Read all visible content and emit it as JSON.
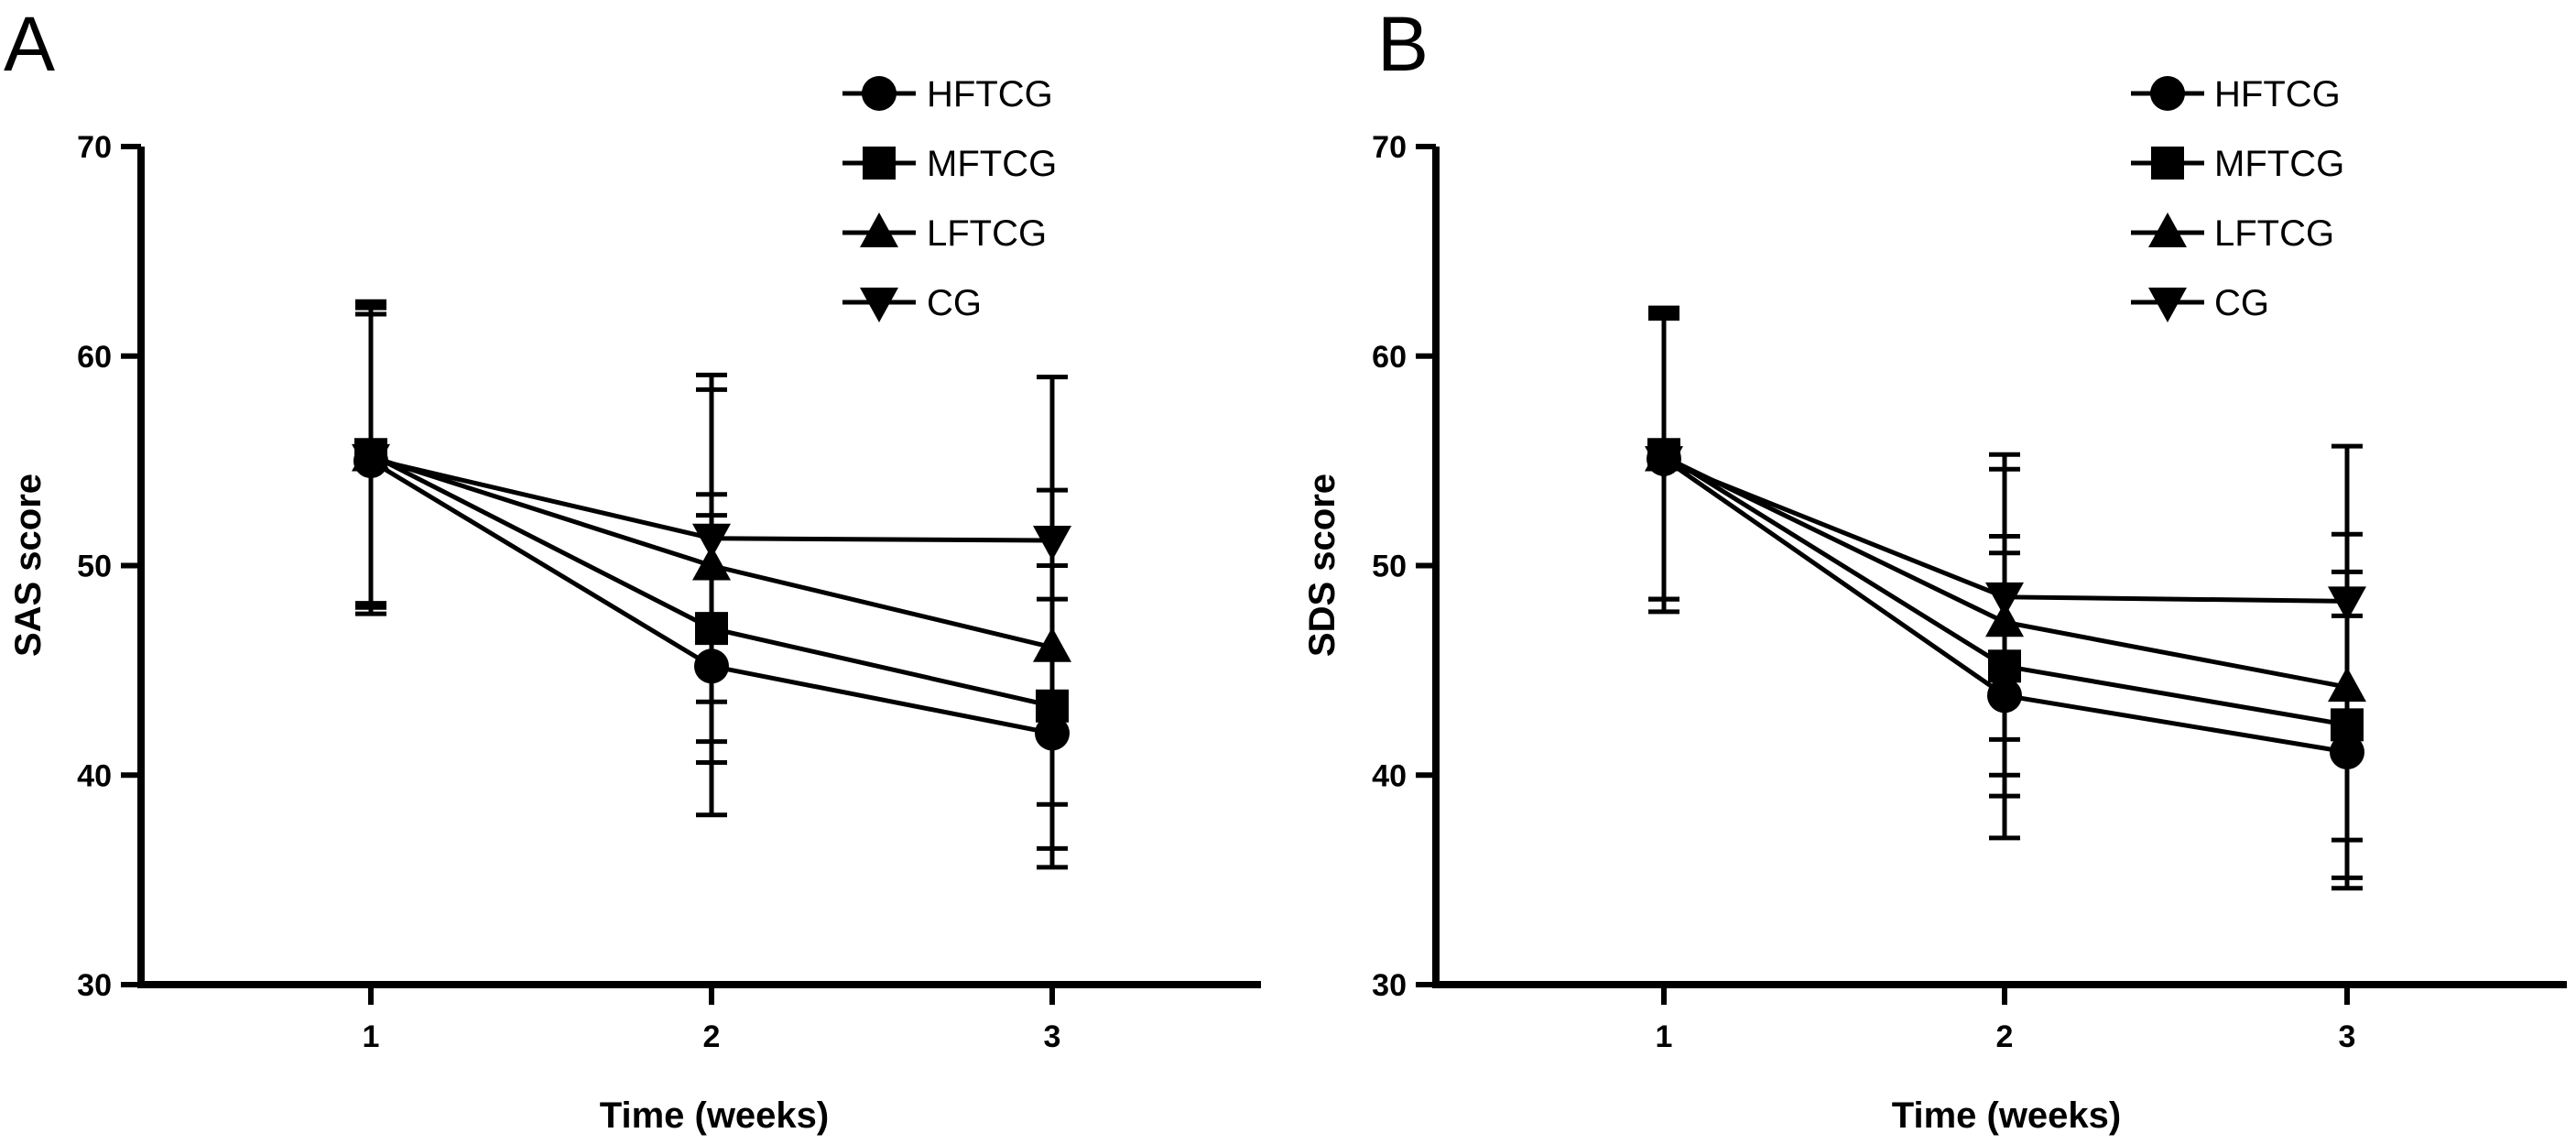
{
  "chart_data": [
    {
      "panel_label": "A",
      "type": "line",
      "xlabel": "Time (weeks)",
      "ylabel": "SAS score",
      "x": [
        1,
        2,
        3
      ],
      "x_tick_labels": [
        "1",
        "2",
        "3"
      ],
      "ylim": [
        30,
        70
      ],
      "y_ticks": [
        30,
        40,
        50,
        60,
        70
      ],
      "grid": false,
      "legend_position": "top-right",
      "series": [
        {
          "name": "HFTCG",
          "marker": "circle",
          "values": [
            55.0,
            45.2,
            42.0
          ],
          "err_upper": [
            62.0,
            52.4,
            48.4
          ],
          "err_lower": [
            48.0,
            38.1,
            35.6
          ]
        },
        {
          "name": "MFTCG",
          "marker": "square",
          "values": [
            55.3,
            47.0,
            43.3
          ],
          "err_upper": [
            62.4,
            53.4,
            50.0
          ],
          "err_lower": [
            48.2,
            40.6,
            36.5
          ]
        },
        {
          "name": "LFTCG",
          "marker": "triangle-up",
          "values": [
            55.2,
            50.0,
            46.1
          ],
          "err_upper": [
            62.3,
            58.4,
            53.6
          ],
          "err_lower": [
            48.1,
            41.6,
            38.6
          ]
        },
        {
          "name": "CG",
          "marker": "triangle-down",
          "values": [
            55.1,
            51.3,
            51.2
          ],
          "err_upper": [
            62.6,
            59.1,
            59.0
          ],
          "err_lower": [
            47.7,
            43.5,
            43.4
          ]
        }
      ]
    },
    {
      "panel_label": "B",
      "type": "line",
      "xlabel": "Time (weeks)",
      "ylabel": "SDS score",
      "x": [
        1,
        2,
        3
      ],
      "x_tick_labels": [
        "1",
        "2",
        "3"
      ],
      "ylim": [
        30,
        70
      ],
      "y_ticks": [
        30,
        40,
        50,
        60,
        70
      ],
      "grid": false,
      "legend_position": "top-right",
      "series": [
        {
          "name": "HFTCG",
          "marker": "circle",
          "values": [
            55.1,
            43.8,
            41.1
          ],
          "err_upper": [
            61.8,
            50.6,
            47.6
          ],
          "err_lower": [
            48.4,
            37.0,
            34.6
          ]
        },
        {
          "name": "MFTCG",
          "marker": "square",
          "values": [
            55.3,
            45.2,
            42.4
          ],
          "err_upper": [
            62.2,
            51.4,
            49.7
          ],
          "err_lower": [
            48.4,
            39.0,
            35.1
          ]
        },
        {
          "name": "LFTCG",
          "marker": "triangle-up",
          "values": [
            55.2,
            47.3,
            44.2
          ],
          "err_upper": [
            62.0,
            54.6,
            51.5
          ],
          "err_lower": [
            48.4,
            40.0,
            36.9
          ]
        },
        {
          "name": "CG",
          "marker": "triangle-down",
          "values": [
            55.0,
            48.5,
            48.3
          ],
          "err_upper": [
            62.3,
            55.3,
            55.7
          ],
          "err_lower": [
            47.8,
            41.7,
            40.9
          ]
        }
      ]
    }
  ]
}
